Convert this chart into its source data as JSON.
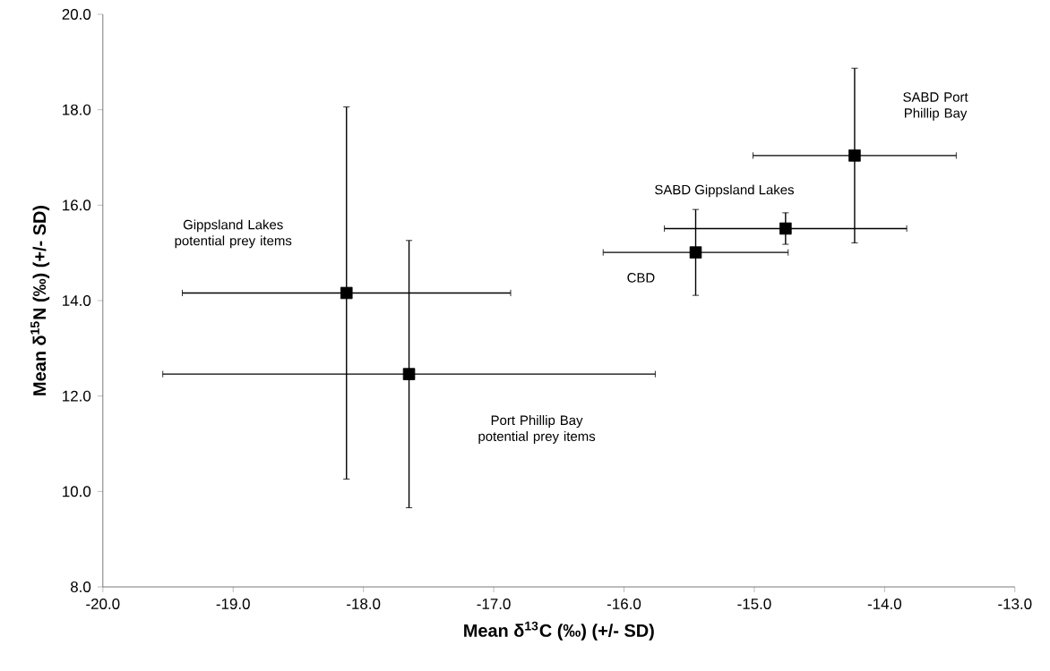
{
  "chart_data": {
    "type": "scatter",
    "xlabel": "Mean δ$^{13}$C (‰) (+/- SD)",
    "ylabel": "Mean δ$^{15}$N (‰) (+/- SD)",
    "x": [
      -18.13,
      -17.65,
      -15.45,
      -14.76,
      -14.23
    ],
    "values": [
      14.16,
      12.46,
      15.01,
      15.51,
      17.04
    ],
    "errors": [
      3.9,
      2.8,
      0.9,
      0.33,
      1.83
    ],
    "xerrors": [
      1.26,
      1.89,
      0.71,
      0.93,
      0.78
    ],
    "color": "#000000",
    "marker": "square",
    "grid": false,
    "xlim": [
      -20,
      -13
    ],
    "ylim": [
      8,
      20
    ],
    "xticks": [
      {
        "value": -20,
        "label": "-20.0"
      },
      {
        "value": -19,
        "label": "-19.0"
      },
      {
        "value": -18,
        "label": "-18.0"
      },
      {
        "value": -17,
        "label": "-17.0"
      },
      {
        "value": -16,
        "label": "-16.0"
      },
      {
        "value": -15,
        "label": "-15.0"
      },
      {
        "value": -14,
        "label": "-14.0"
      },
      {
        "value": -13,
        "label": "-13.0"
      }
    ],
    "yticks": [
      {
        "value": 8,
        "label": "8.0"
      },
      {
        "value": 10,
        "label": "10.0"
      },
      {
        "value": 12,
        "label": "12.0"
      },
      {
        "value": 14,
        "label": "14.0"
      },
      {
        "value": 16,
        "label": "16.0"
      },
      {
        "value": 18,
        "label": "18.0"
      },
      {
        "value": 20,
        "label": "20.0"
      }
    ],
    "annotations": [
      "Gippsland Lakes potential prey items",
      "Port Phillip Bay potential prey items",
      "CBD",
      "SABD Gippsland Lakes",
      "SABD Port Phillip Bay"
    ]
  }
}
